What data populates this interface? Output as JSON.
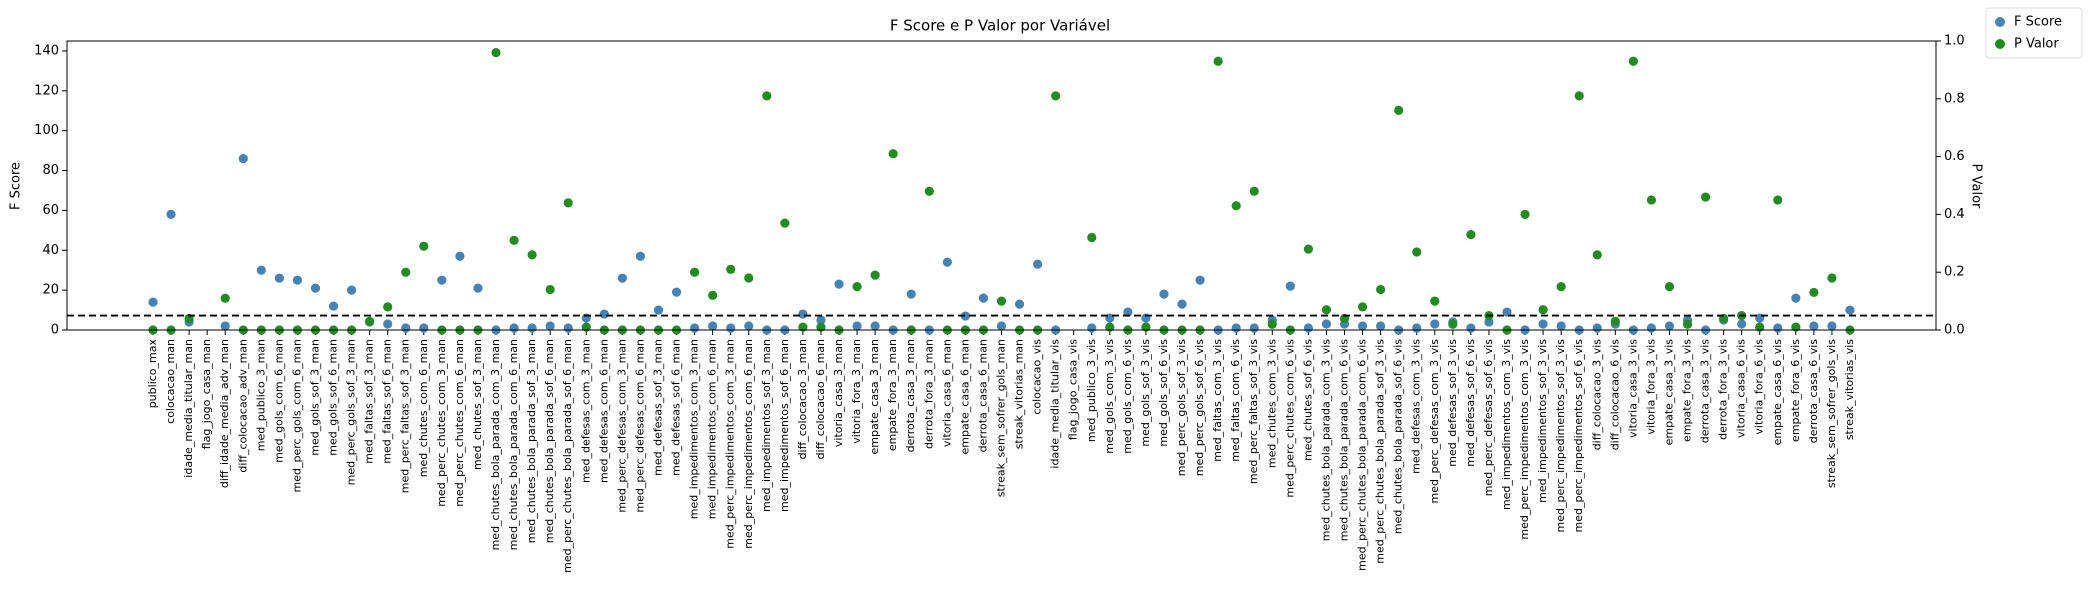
{
  "chart_data": {
    "type": "scatter",
    "title": "F Score e P Valor por Variável",
    "y_label": "F Score",
    "y2_label": "P Valor",
    "categories": [
      "publico_max",
      "colocacao_man",
      "idade_media_titular_man",
      "flag_jogo_casa_man",
      "diff_idade_media_adv_man",
      "diff_colocacao_adv_man",
      "med_publico_3_man",
      "med_gols_com_6_man",
      "med_perc_gols_com_6_man",
      "med_gols_sof_3_man",
      "med_gols_sof_6_man",
      "med_perc_gols_sof_3_man",
      "med_faltas_sof_3_man",
      "med_faltas_sof_6_man",
      "med_perc_faltas_sof_3_man",
      "med_chutes_com_6_man",
      "med_perc_chutes_com_3_man",
      "med_perc_chutes_com_6_man",
      "med_chutes_sof_3_man",
      "med_chutes_bola_parada_com_3_man",
      "med_chutes_bola_parada_com_6_man",
      "med_chutes_bola_parada_sof_3_man",
      "med_chutes_bola_parada_sof_6_man",
      "med_perc_chutes_bola_parada_sof_6_man",
      "med_defesas_com_3_man",
      "med_defesas_com_6_man",
      "med_perc_defesas_com_3_man",
      "med_perc_defesas_com_6_man",
      "med_defesas_sof_3_man",
      "med_defesas_sof_6_man",
      "med_impedimentos_com_3_man",
      "med_impedimentos_com_6_man",
      "med_perc_impedimentos_com_3_man",
      "med_perc_impedimentos_com_6_man",
      "med_impedimentos_sof_3_man",
      "med_impedimentos_sof_6_man",
      "diff_colocacao_3_man",
      "diff_colocacao_6_man",
      "vitoria_casa_3_man",
      "vitoria_fora_3_man",
      "empate_casa_3_man",
      "empate_fora_3_man",
      "derrota_casa_3_man",
      "derrota_fora_3_man",
      "vitoria_casa_6_man",
      "empate_casa_6_man",
      "derrota_casa_6_man",
      "streak_sem_sofrer_gols_man",
      "streak_vitorias_man",
      "colocacao_vis",
      "idade_media_titular_vis",
      "flag_jogo_casa_vis",
      "med_publico_3_vis",
      "med_gols_com_3_vis",
      "med_gols_com_6_vis",
      "med_gols_sof_3_vis",
      "med_gols_sof_6_vis",
      "med_perc_gols_sof_3_vis",
      "med_perc_gols_sof_6_vis",
      "med_faltas_com_3_vis",
      "med_faltas_com_6_vis",
      "med_perc_faltas_sof_3_vis",
      "med_chutes_com_3_vis",
      "med_perc_chutes_com_6_vis",
      "med_chutes_sof_6_vis",
      "med_chutes_bola_parada_com_3_vis",
      "med_chutes_bola_parada_com_6_vis",
      "med_perc_chutes_bola_parada_com_6_vis",
      "med_perc_chutes_bola_parada_sof_3_vis",
      "med_chutes_bola_parada_sof_6_vis",
      "med_defesas_com_3_vis",
      "med_perc_defesas_com_3_vis",
      "med_defesas_sof_3_vis",
      "med_defesas_sof_6_vis",
      "med_perc_defesas_sof_6_vis",
      "med_impedimentos_com_3_vis",
      "med_perc_impedimentos_com_3_vis",
      "med_impedimentos_sof_3_vis",
      "med_perc_impedimentos_sof_3_vis",
      "med_perc_impedimentos_sof_6_vis",
      "diff_colocacao_3_vis",
      "diff_colocacao_6_vis",
      "vitoria_casa_3_vis",
      "vitoria_fora_3_vis",
      "empate_casa_3_vis",
      "empate_fora_3_vis",
      "derrota_casa_3_vis",
      "derrota_fora_3_vis",
      "vitoria_casa_6_vis",
      "vitoria_fora_6_vis",
      "empate_casa_6_vis",
      "empate_fora_6_vis",
      "derrota_casa_6_vis",
      "streak_sem_sofrer_gols_vis",
      "streak_vitorias_vis"
    ],
    "series": [
      {
        "name": "F Score",
        "color": "#4682b4",
        "values": [
          14,
          58,
          4,
          null,
          2,
          86,
          30,
          26,
          25,
          21,
          12,
          20,
          4,
          3,
          1,
          1,
          25,
          37,
          21,
          0,
          1,
          1,
          2,
          1,
          6,
          8,
          26,
          37,
          10,
          19,
          1,
          2,
          1,
          2,
          0,
          0,
          8,
          5,
          23,
          2,
          2,
          0,
          18,
          0,
          34,
          7,
          16,
          2,
          13,
          33,
          0,
          null,
          1,
          6,
          9,
          6,
          18,
          13,
          25,
          0,
          1,
          1,
          5,
          22,
          1,
          3,
          3,
          2,
          2,
          0,
          1,
          3,
          4,
          1,
          4,
          9,
          0,
          3,
          2,
          0,
          1,
          3,
          0,
          1,
          2,
          5,
          0,
          5,
          3,
          6,
          1,
          16,
          2,
          2,
          10
        ]
      },
      {
        "name": "P Valor",
        "color": "#228b22",
        "axis": "y2",
        "values": [
          0,
          0,
          0.04,
          null,
          0.11,
          0,
          0,
          0,
          0,
          0,
          0,
          0,
          0.03,
          0.08,
          0.2,
          0.29,
          0,
          0,
          0,
          0.96,
          0.31,
          0.26,
          0.14,
          0.44,
          0.01,
          0,
          0,
          0,
          0,
          0,
          0.2,
          0.12,
          0.21,
          0.18,
          0.81,
          0.37,
          0.01,
          0.01,
          0,
          0.15,
          0.19,
          0.61,
          0,
          0.48,
          0,
          0,
          0,
          0.1,
          0,
          0,
          0.81,
          null,
          0.32,
          0.01,
          0,
          0.01,
          0,
          0,
          0,
          0.93,
          0.43,
          0.48,
          0.02,
          0,
          0.28,
          0.07,
          0.04,
          0.08,
          0.14,
          0.76,
          0.27,
          0.1,
          0.02,
          0.33,
          0.05,
          0,
          0.4,
          0.07,
          0.15,
          0.81,
          0.26,
          0.03,
          0.93,
          0.45,
          0.15,
          0.02,
          0.46,
          0.04,
          0.05,
          0.01,
          0.45,
          0.01,
          0.13,
          0.18,
          0
        ]
      }
    ],
    "ylim": [
      0,
      145
    ],
    "yticks": [
      0,
      20,
      40,
      60,
      80,
      100,
      120,
      140
    ],
    "y2lim": [
      0,
      1
    ],
    "y2ticks": [
      {
        "value": 0,
        "label": "0.0"
      },
      {
        "value": 0.2,
        "label": "0.2"
      },
      {
        "value": 0.4,
        "label": "0.4"
      },
      {
        "value": 0.6,
        "label": "0.6"
      },
      {
        "value": 0.8,
        "label": "0.8"
      },
      {
        "value": 1,
        "label": "1.0"
      }
    ],
    "hline": {
      "value": 0.05,
      "axis": "y2"
    },
    "legend": "upper-right"
  }
}
